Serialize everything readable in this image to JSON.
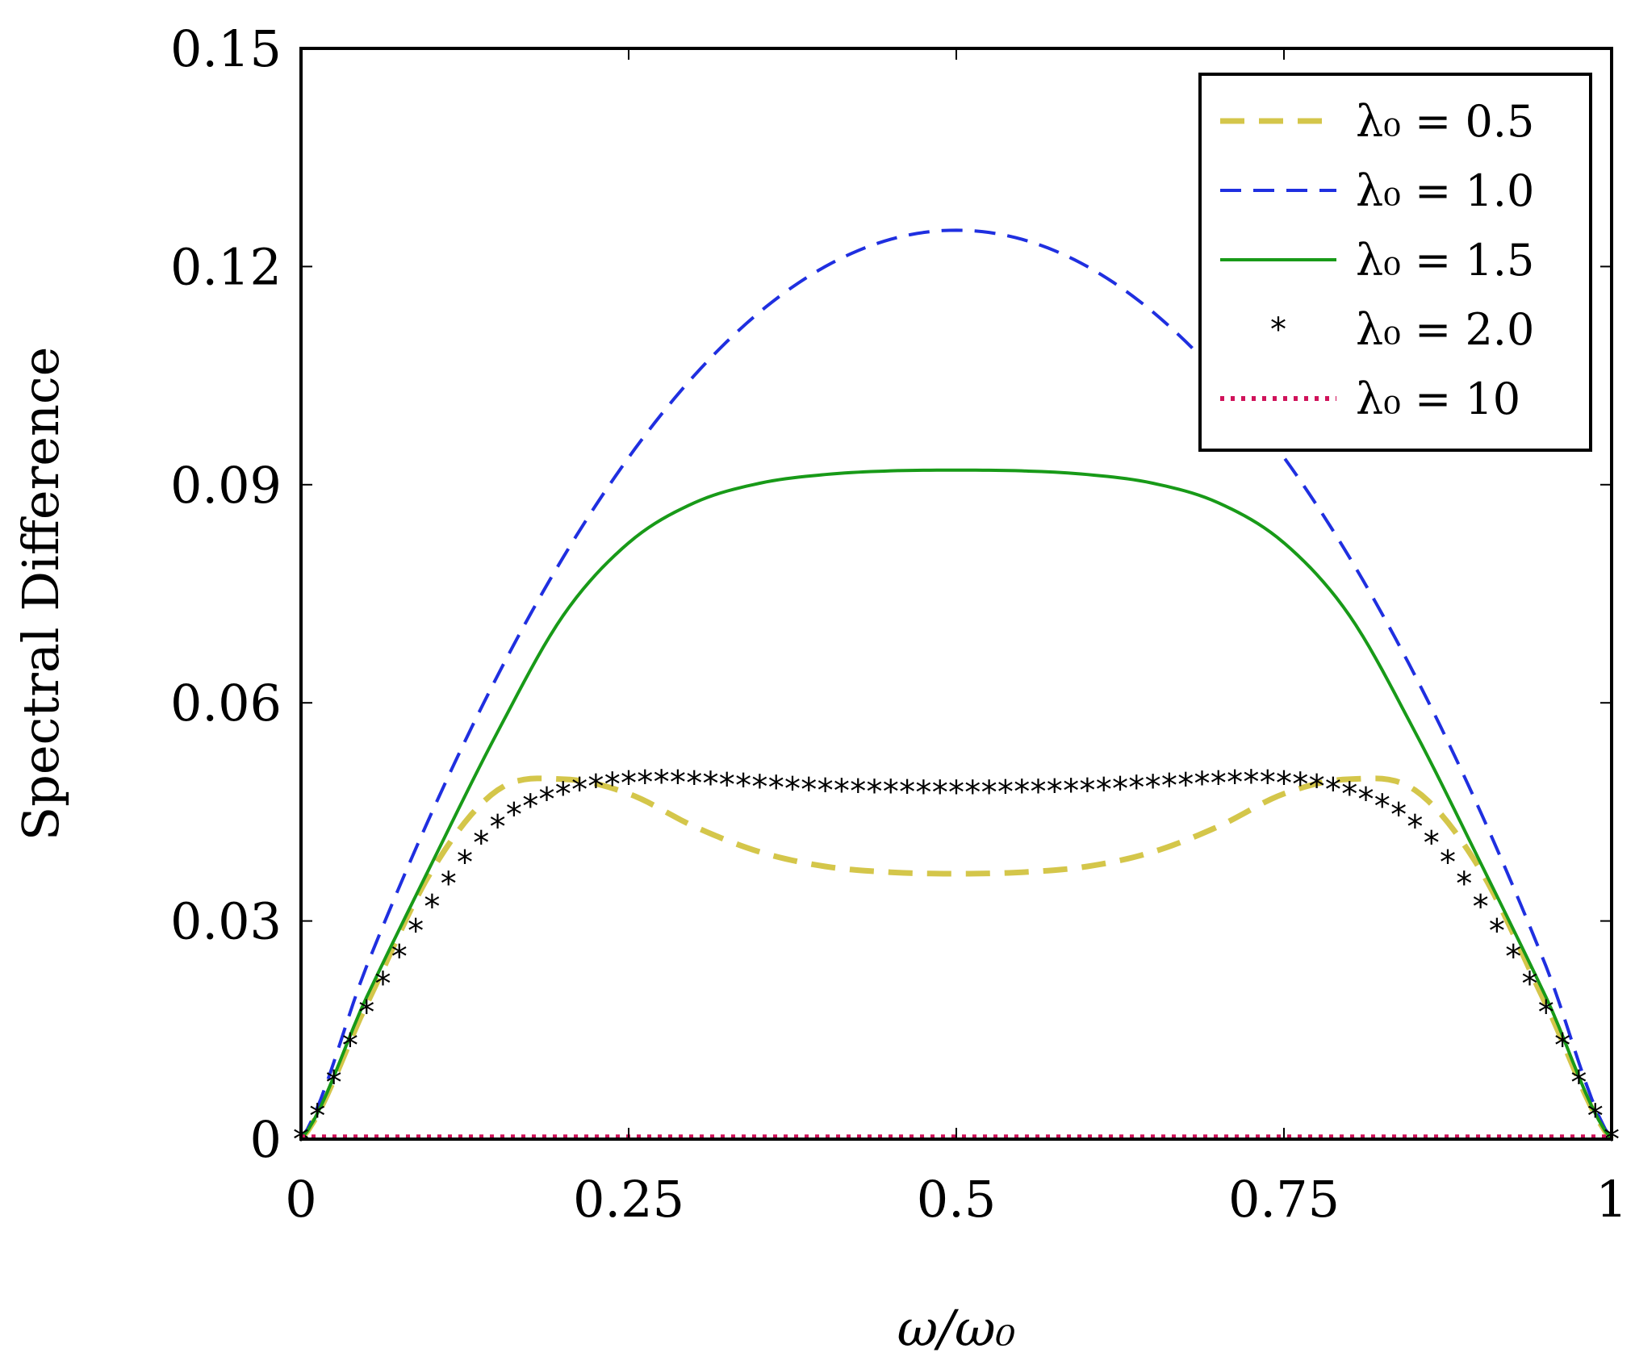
{
  "chart_data": {
    "type": "line",
    "title": "",
    "xlabel": "ω/ω₀",
    "ylabel": "Spectral Difference",
    "xlim": [
      0,
      1
    ],
    "ylim": [
      0,
      0.15
    ],
    "xticks": [
      0,
      0.25,
      0.5,
      0.75,
      1
    ],
    "xtick_labels": [
      "0",
      "0.25",
      "0.5",
      "0.75",
      "1"
    ],
    "yticks": [
      0,
      0.03,
      0.06,
      0.09,
      0.12,
      0.15
    ],
    "ytick_labels": [
      "0",
      "0.03",
      "0.06",
      "0.09",
      "0.12",
      "0.15"
    ],
    "legend_position": "top-right",
    "x": [
      0,
      0.05,
      0.1,
      0.15,
      0.2,
      0.25,
      0.3,
      0.35,
      0.4,
      0.45,
      0.5,
      0.55,
      0.6,
      0.65,
      0.7,
      0.75,
      0.8,
      0.85,
      0.9,
      0.95,
      1
    ],
    "series": [
      {
        "name": "λ₀ = 0.5",
        "label": "λ₀ = 0.5",
        "color": "#d4c64a",
        "style": "dashed-thick",
        "values": [
          0,
          0.0185,
          0.037,
          0.048,
          0.0495,
          0.0475,
          0.043,
          0.0395,
          0.0375,
          0.0367,
          0.0365,
          0.0367,
          0.0375,
          0.0395,
          0.043,
          0.0475,
          0.0495,
          0.048,
          0.037,
          0.0185,
          0
        ]
      },
      {
        "name": "λ₀ = 1.0",
        "label": "λ₀ = 1.0",
        "color": "#1f2fe0",
        "style": "dashed",
        "values": [
          0,
          0.02375,
          0.045,
          0.06375,
          0.08,
          0.09375,
          0.105,
          0.11375,
          0.12,
          0.12375,
          0.125,
          0.12375,
          0.12,
          0.11375,
          0.105,
          0.09375,
          0.08,
          0.06375,
          0.045,
          0.02375,
          0
        ]
      },
      {
        "name": "λ₀ = 1.5",
        "label": "λ₀ = 1.5",
        "color": "#189a18",
        "style": "solid",
        "values": [
          0,
          0.0195,
          0.038,
          0.056,
          0.072,
          0.082,
          0.0875,
          0.0902,
          0.0914,
          0.0919,
          0.092,
          0.0919,
          0.0914,
          0.0902,
          0.0875,
          0.082,
          0.072,
          0.056,
          0.038,
          0.0195,
          0
        ]
      },
      {
        "name": "λ₀ = 2.0",
        "label": "λ₀ = 2.0",
        "color": "#000000",
        "style": "star-markers",
        "values": [
          0,
          0.0175,
          0.032,
          0.043,
          0.0475,
          0.049,
          0.049,
          0.0485,
          0.048,
          0.0478,
          0.0477,
          0.0478,
          0.048,
          0.0485,
          0.049,
          0.049,
          0.0475,
          0.043,
          0.032,
          0.0175,
          0
        ]
      },
      {
        "name": "λ₀ = 10",
        "label": "λ₀ = 10",
        "color": "#d0125a",
        "style": "dotted",
        "values": [
          0.0003,
          0.0003,
          0.0003,
          0.0003,
          0.0003,
          0.0003,
          0.0003,
          0.0003,
          0.0003,
          0.0003,
          0.0003,
          0.0003,
          0.0003,
          0.0003,
          0.0003,
          0.0003,
          0.0003,
          0.0003,
          0.0003,
          0.0003,
          0.0003
        ]
      }
    ]
  }
}
